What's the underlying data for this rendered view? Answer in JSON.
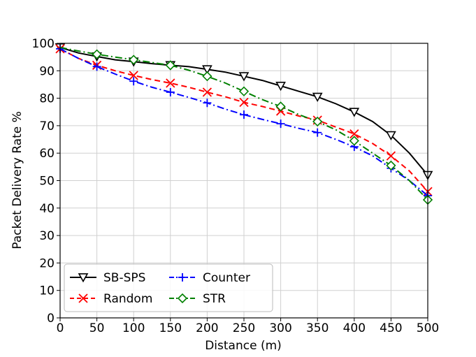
{
  "chart_data": {
    "type": "line",
    "xlabel": "Distance (m)",
    "ylabel": "Packet Delivery Rate %",
    "xlim": [
      0,
      500
    ],
    "ylim": [
      0,
      100
    ],
    "xticks": [
      0,
      50,
      100,
      150,
      200,
      250,
      300,
      350,
      400,
      450,
      500
    ],
    "yticks": [
      0,
      10,
      20,
      30,
      40,
      50,
      60,
      70,
      80,
      90,
      100
    ],
    "grid": true,
    "legend_position": "bottom-left",
    "legend_columns": 2,
    "series": [
      {
        "name": "SB-SPS",
        "color": "#000000",
        "line_style": "solid",
        "marker": "triangle-down",
        "x": [
          0,
          25,
          50,
          75,
          100,
          125,
          150,
          175,
          200,
          225,
          250,
          275,
          300,
          325,
          350,
          375,
          400,
          425,
          450,
          475,
          500
        ],
        "y": [
          98.5,
          96.5,
          95.2,
          94.0,
          93.3,
          92.6,
          92.0,
          91.5,
          90.5,
          89.5,
          88.0,
          86.5,
          84.5,
          82.5,
          80.5,
          78.0,
          75.0,
          71.5,
          66.5,
          60.0,
          52.0
        ],
        "marker_x": [
          0,
          50,
          100,
          150,
          200,
          250,
          300,
          350,
          400,
          450,
          500
        ]
      },
      {
        "name": "Random",
        "color": "#ff0000",
        "line_style": "dashed",
        "marker": "x",
        "x": [
          0,
          25,
          50,
          75,
          100,
          125,
          150,
          175,
          200,
          225,
          250,
          275,
          300,
          325,
          350,
          375,
          400,
          425,
          450,
          475,
          500
        ],
        "y": [
          98.0,
          94.5,
          92.0,
          90.0,
          88.3,
          86.8,
          85.5,
          84.0,
          82.2,
          80.5,
          78.5,
          77.0,
          75.3,
          73.5,
          72.0,
          69.5,
          67.0,
          63.5,
          59.0,
          53.5,
          46.0
        ],
        "marker_x": [
          0,
          50,
          100,
          150,
          200,
          250,
          300,
          350,
          400,
          450,
          500
        ]
      },
      {
        "name": "Counter",
        "color": "#0000ff",
        "line_style": "dashdot",
        "marker": "plus",
        "x": [
          0,
          25,
          50,
          75,
          100,
          125,
          150,
          175,
          200,
          225,
          250,
          275,
          300,
          325,
          350,
          375,
          400,
          425,
          450,
          475,
          500
        ],
        "y": [
          98.0,
          94.5,
          91.5,
          88.8,
          86.2,
          84.0,
          82.2,
          80.3,
          78.3,
          76.0,
          74.0,
          72.3,
          70.7,
          69.0,
          67.5,
          65.0,
          62.3,
          59.0,
          54.5,
          50.0,
          44.5
        ],
        "marker_x": [
          0,
          50,
          100,
          150,
          200,
          250,
          300,
          350,
          400,
          450,
          500
        ]
      },
      {
        "name": "STR",
        "color": "#008000",
        "line_style": "dashdot",
        "marker": "diamond",
        "x": [
          0,
          25,
          50,
          75,
          100,
          125,
          150,
          175,
          200,
          225,
          250,
          275,
          300,
          325,
          350,
          375,
          400,
          425,
          450,
          475,
          500
        ],
        "y": [
          98.5,
          97.2,
          96.0,
          95.0,
          94.0,
          93.0,
          92.0,
          90.2,
          88.0,
          85.5,
          82.5,
          79.5,
          77.0,
          74.0,
          71.5,
          68.5,
          64.5,
          60.0,
          55.5,
          50.0,
          43.0
        ],
        "marker_x": [
          50,
          100,
          150,
          200,
          250,
          300,
          350,
          400,
          450,
          500
        ]
      }
    ]
  }
}
